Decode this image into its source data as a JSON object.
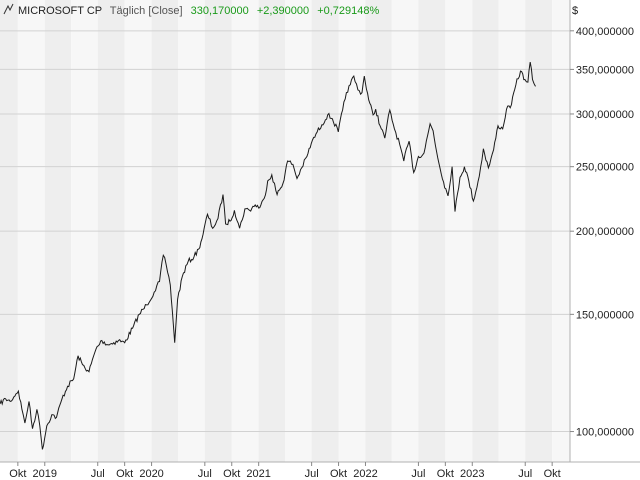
{
  "header": {
    "symbol": "MICROSOFT CP",
    "interval": "Täglich [Close]",
    "last": "330,170000",
    "change": "+2,390000",
    "change_pct": "+0,729148%"
  },
  "colors": {
    "line": "#1a1a1a",
    "positive": "#1a9a1a",
    "band_dark": "#eeeeee",
    "band_light": "#f7f7f7",
    "grid": "#d2d2d2"
  },
  "chart_data": {
    "type": "line",
    "title": "MICROSOFT CP",
    "y_scale": "log",
    "ylim": [
      90,
      445
    ],
    "currency_label": "$",
    "y_ticks": [
      {
        "value": 100,
        "label": "100,000000"
      },
      {
        "value": 150,
        "label": "150,000000"
      },
      {
        "value": 200,
        "label": "200,000000"
      },
      {
        "value": 250,
        "label": "250,000000"
      },
      {
        "value": 300,
        "label": "300,000000"
      },
      {
        "value": 350,
        "label": "350,000000"
      },
      {
        "value": 400,
        "label": "400,000000"
      }
    ],
    "x_ticks": [
      {
        "date": "2018-10-01",
        "label": "Okt"
      },
      {
        "date": "2019-01-01",
        "label": "2019"
      },
      {
        "date": "2019-07-01",
        "label": "Jul"
      },
      {
        "date": "2019-10-01",
        "label": "Okt"
      },
      {
        "date": "2020-01-01",
        "label": "2020"
      },
      {
        "date": "2020-07-01",
        "label": "Jul"
      },
      {
        "date": "2020-10-01",
        "label": "Okt"
      },
      {
        "date": "2021-01-01",
        "label": "2021"
      },
      {
        "date": "2021-07-01",
        "label": "Jul"
      },
      {
        "date": "2021-10-01",
        "label": "Okt"
      },
      {
        "date": "2022-01-01",
        "label": "2022"
      },
      {
        "date": "2022-07-01",
        "label": "Jul"
      },
      {
        "date": "2022-10-01",
        "label": "Okt"
      },
      {
        "date": "2023-01-01",
        "label": "2023"
      },
      {
        "date": "2023-07-01",
        "label": "Jul"
      },
      {
        "date": "2023-10-01",
        "label": "Okt"
      }
    ],
    "xlim": [
      "2018-08-01",
      "2023-12-01"
    ],
    "series": [
      {
        "name": "MICROSOFT CP",
        "points": [
          [
            "2018-08-01",
            110
          ],
          [
            "2018-08-20",
            112
          ],
          [
            "2018-09-05",
            111
          ],
          [
            "2018-09-25",
            114
          ],
          [
            "2018-10-03",
            115
          ],
          [
            "2018-10-15",
            108
          ],
          [
            "2018-10-25",
            103
          ],
          [
            "2018-11-08",
            111
          ],
          [
            "2018-11-20",
            101
          ],
          [
            "2018-12-05",
            108
          ],
          [
            "2018-12-15",
            102
          ],
          [
            "2018-12-24",
            94
          ],
          [
            "2019-01-08",
            102
          ],
          [
            "2019-01-25",
            106
          ],
          [
            "2019-02-10",
            105
          ],
          [
            "2019-03-01",
            112
          ],
          [
            "2019-03-20",
            117
          ],
          [
            "2019-04-10",
            120
          ],
          [
            "2019-04-25",
            130
          ],
          [
            "2019-05-10",
            126
          ],
          [
            "2019-06-01",
            123
          ],
          [
            "2019-06-25",
            133
          ],
          [
            "2019-07-15",
            137
          ],
          [
            "2019-08-05",
            135
          ],
          [
            "2019-08-25",
            136
          ],
          [
            "2019-09-10",
            137
          ],
          [
            "2019-10-01",
            136
          ],
          [
            "2019-10-28",
            143
          ],
          [
            "2019-11-20",
            150
          ],
          [
            "2019-12-15",
            155
          ],
          [
            "2020-01-10",
            162
          ],
          [
            "2020-01-28",
            168
          ],
          [
            "2020-02-10",
            184
          ],
          [
            "2020-02-20",
            178
          ],
          [
            "2020-03-05",
            166
          ],
          [
            "2020-03-12",
            152
          ],
          [
            "2020-03-20",
            136
          ],
          [
            "2020-03-30",
            158
          ],
          [
            "2020-04-15",
            171
          ],
          [
            "2020-05-05",
            180
          ],
          [
            "2020-05-25",
            183
          ],
          [
            "2020-06-10",
            188
          ],
          [
            "2020-06-25",
            198
          ],
          [
            "2020-07-10",
            212
          ],
          [
            "2020-07-28",
            202
          ],
          [
            "2020-08-15",
            209
          ],
          [
            "2020-09-01",
            227
          ],
          [
            "2020-09-10",
            205
          ],
          [
            "2020-09-25",
            207
          ],
          [
            "2020-10-10",
            215
          ],
          [
            "2020-10-28",
            202
          ],
          [
            "2020-11-15",
            216
          ],
          [
            "2020-12-01",
            215
          ],
          [
            "2020-12-20",
            219
          ],
          [
            "2021-01-05",
            217
          ],
          [
            "2021-01-20",
            224
          ],
          [
            "2021-02-01",
            238
          ],
          [
            "2021-02-15",
            243
          ],
          [
            "2021-03-05",
            227
          ],
          [
            "2021-03-25",
            236
          ],
          [
            "2021-04-10",
            255
          ],
          [
            "2021-04-28",
            252
          ],
          [
            "2021-05-12",
            240
          ],
          [
            "2021-05-28",
            249
          ],
          [
            "2021-06-15",
            259
          ],
          [
            "2021-06-30",
            271
          ],
          [
            "2021-07-20",
            282
          ],
          [
            "2021-08-05",
            289
          ],
          [
            "2021-08-25",
            299
          ],
          [
            "2021-09-10",
            295
          ],
          [
            "2021-09-30",
            282
          ],
          [
            "2021-10-15",
            304
          ],
          [
            "2021-10-28",
            323
          ],
          [
            "2021-11-10",
            332
          ],
          [
            "2021-11-22",
            342
          ],
          [
            "2021-12-06",
            326
          ],
          [
            "2021-12-20",
            323
          ],
          [
            "2021-12-28",
            342
          ],
          [
            "2022-01-12",
            315
          ],
          [
            "2022-01-27",
            299
          ],
          [
            "2022-02-05",
            305
          ],
          [
            "2022-02-20",
            288
          ],
          [
            "2022-03-08",
            276
          ],
          [
            "2022-03-25",
            304
          ],
          [
            "2022-04-10",
            285
          ],
          [
            "2022-04-28",
            270
          ],
          [
            "2022-05-12",
            255
          ],
          [
            "2022-05-30",
            273
          ],
          [
            "2022-06-15",
            245
          ],
          [
            "2022-07-01",
            259
          ],
          [
            "2022-07-20",
            262
          ],
          [
            "2022-08-10",
            290
          ],
          [
            "2022-08-20",
            283
          ],
          [
            "2022-09-05",
            258
          ],
          [
            "2022-09-25",
            237
          ],
          [
            "2022-10-10",
            226
          ],
          [
            "2022-10-24",
            250
          ],
          [
            "2022-11-03",
            214
          ],
          [
            "2022-11-20",
            241
          ],
          [
            "2022-12-05",
            250
          ],
          [
            "2022-12-20",
            238
          ],
          [
            "2023-01-05",
            222
          ],
          [
            "2023-01-25",
            242
          ],
          [
            "2023-02-08",
            266
          ],
          [
            "2023-02-25",
            249
          ],
          [
            "2023-03-15",
            265
          ],
          [
            "2023-03-30",
            288
          ],
          [
            "2023-04-15",
            285
          ],
          [
            "2023-04-28",
            305
          ],
          [
            "2023-05-15",
            310
          ],
          [
            "2023-05-30",
            332
          ],
          [
            "2023-06-15",
            348
          ],
          [
            "2023-06-30",
            338
          ],
          [
            "2023-07-10",
            335
          ],
          [
            "2023-07-18",
            359
          ],
          [
            "2023-07-26",
            338
          ],
          [
            "2023-08-05",
            330
          ]
        ]
      }
    ],
    "grid": true
  }
}
